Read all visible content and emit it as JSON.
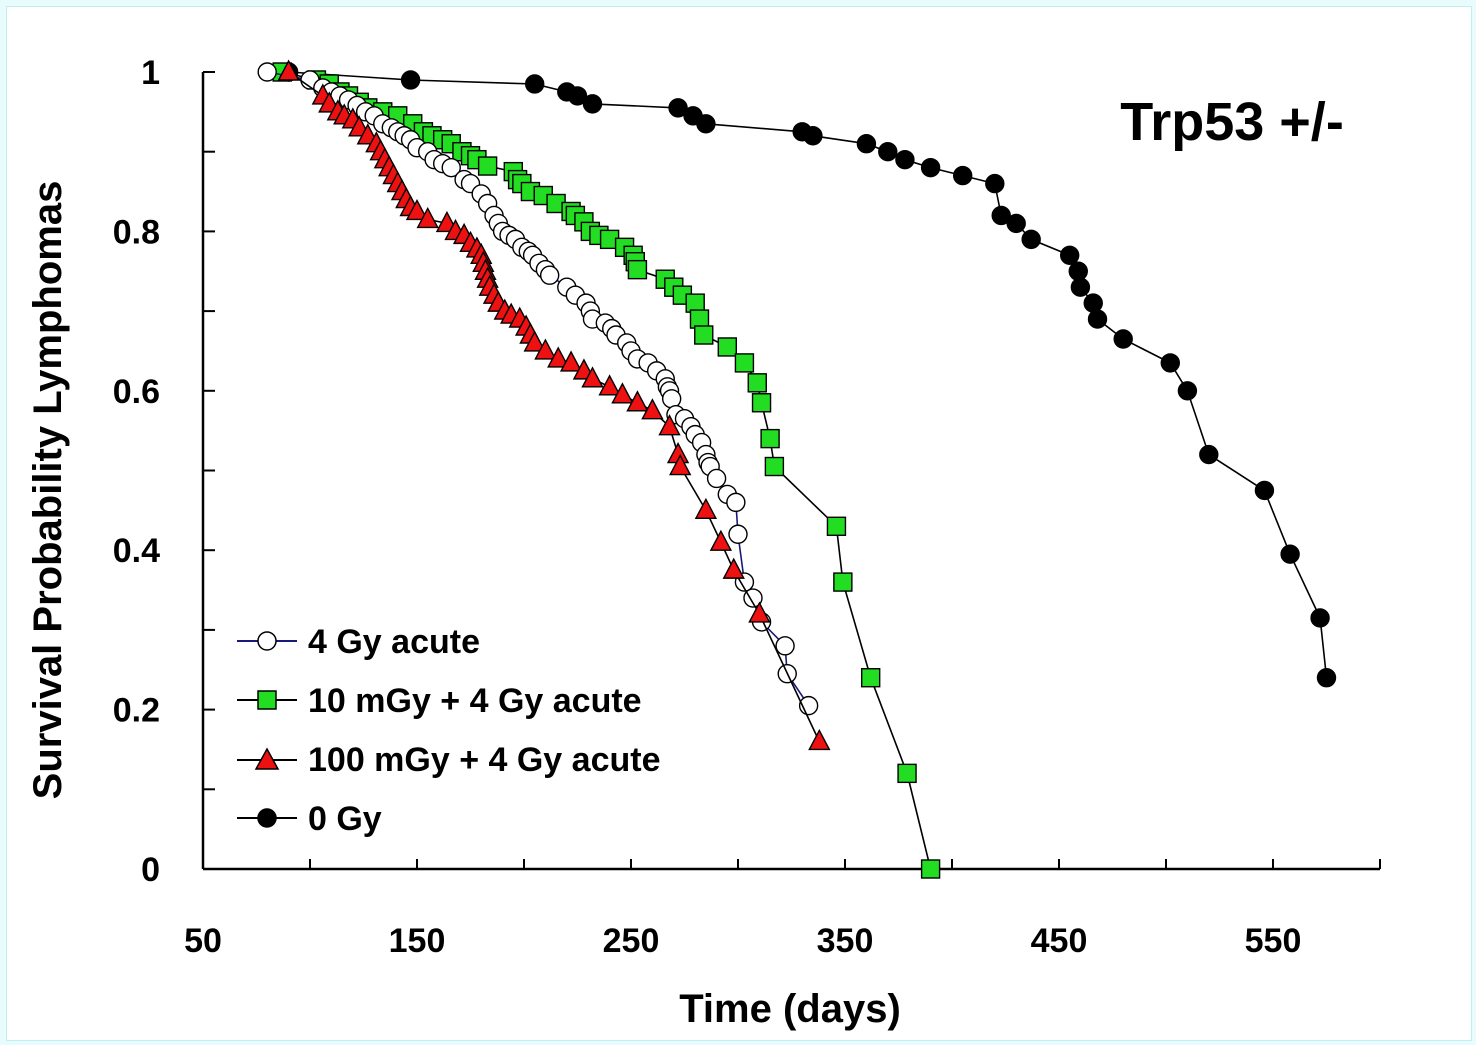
{
  "chart_data": {
    "type": "line",
    "title": "",
    "annotation": "Trp53 +/-",
    "xlabel": "Time (days)",
    "ylabel": "Survival Probability Lymphomas",
    "xlim": [
      50,
      600
    ],
    "ylim": [
      0,
      1
    ],
    "xticks": [
      50,
      150,
      250,
      350,
      450,
      550
    ],
    "xtick_labels": [
      "50",
      "150",
      "250",
      "350",
      "450",
      "550"
    ],
    "yticks": [
      0,
      0.2,
      0.4,
      0.6,
      0.8,
      1
    ],
    "ytick_labels": [
      "0",
      "0.2",
      "0.4",
      "0.6",
      "0.8",
      "1"
    ],
    "grid": false,
    "legend_position": "bottom-left",
    "series": [
      {
        "name": "4 Gy acute",
        "marker": "circle-open",
        "line_color": "#1a1a7a",
        "marker_fill": "#ffffff",
        "points": [
          [
            80,
            1.0
          ],
          [
            100,
            0.99
          ],
          [
            106,
            0.98
          ],
          [
            110,
            0.975
          ],
          [
            114,
            0.97
          ],
          [
            118,
            0.965
          ],
          [
            122,
            0.958
          ],
          [
            126,
            0.95
          ],
          [
            130,
            0.945
          ],
          [
            134,
            0.935
          ],
          [
            138,
            0.93
          ],
          [
            141,
            0.925
          ],
          [
            144,
            0.92
          ],
          [
            147,
            0.915
          ],
          [
            150,
            0.905
          ],
          [
            155,
            0.9
          ],
          [
            158,
            0.89
          ],
          [
            162,
            0.885
          ],
          [
            166,
            0.88
          ],
          [
            172,
            0.865
          ],
          [
            175,
            0.86
          ],
          [
            180,
            0.847
          ],
          [
            183,
            0.835
          ],
          [
            186,
            0.82
          ],
          [
            188,
            0.81
          ],
          [
            190,
            0.8
          ],
          [
            193,
            0.795
          ],
          [
            196,
            0.79
          ],
          [
            199,
            0.78
          ],
          [
            202,
            0.775
          ],
          [
            204,
            0.77
          ],
          [
            207,
            0.76
          ],
          [
            210,
            0.752
          ],
          [
            212,
            0.745
          ],
          [
            220,
            0.73
          ],
          [
            224,
            0.72
          ],
          [
            229,
            0.71
          ],
          [
            231,
            0.7
          ],
          [
            232,
            0.69
          ],
          [
            238,
            0.685
          ],
          [
            241,
            0.678
          ],
          [
            243,
            0.67
          ],
          [
            248,
            0.66
          ],
          [
            250,
            0.65
          ],
          [
            253,
            0.64
          ],
          [
            258,
            0.635
          ],
          [
            262,
            0.625
          ],
          [
            266,
            0.615
          ],
          [
            267,
            0.605
          ],
          [
            268,
            0.6
          ],
          [
            269,
            0.59
          ],
          [
            271,
            0.57
          ],
          [
            275,
            0.565
          ],
          [
            278,
            0.555
          ],
          [
            280,
            0.545
          ],
          [
            283,
            0.535
          ],
          [
            285,
            0.52
          ],
          [
            286,
            0.51
          ],
          [
            287,
            0.505
          ],
          [
            290,
            0.49
          ],
          [
            295,
            0.47
          ],
          [
            299,
            0.46
          ],
          [
            300,
            0.42
          ],
          [
            303,
            0.36
          ],
          [
            307,
            0.34
          ],
          [
            311,
            0.31
          ],
          [
            322,
            0.28
          ],
          [
            323,
            0.245
          ],
          [
            333,
            0.205
          ]
        ]
      },
      {
        "name": "10 mGy + 4 Gy acute",
        "marker": "square",
        "line_color": "#000000",
        "marker_fill": "#22dd22",
        "points": [
          [
            87,
            1.0
          ],
          [
            103,
            0.99
          ],
          [
            109,
            0.985
          ],
          [
            114,
            0.975
          ],
          [
            118,
            0.97
          ],
          [
            123,
            0.962
          ],
          [
            127,
            0.955
          ],
          [
            134,
            0.95
          ],
          [
            141,
            0.945
          ],
          [
            148,
            0.935
          ],
          [
            153,
            0.925
          ],
          [
            157,
            0.92
          ],
          [
            162,
            0.915
          ],
          [
            166,
            0.91
          ],
          [
            171,
            0.9
          ],
          [
            175,
            0.895
          ],
          [
            178,
            0.89
          ],
          [
            183,
            0.882
          ],
          [
            195,
            0.875
          ],
          [
            197,
            0.865
          ],
          [
            199,
            0.86
          ],
          [
            203,
            0.85
          ],
          [
            209,
            0.845
          ],
          [
            215,
            0.835
          ],
          [
            222,
            0.825
          ],
          [
            224,
            0.82
          ],
          [
            228,
            0.812
          ],
          [
            231,
            0.8
          ],
          [
            235,
            0.795
          ],
          [
            240,
            0.79
          ],
          [
            247,
            0.78
          ],
          [
            251,
            0.77
          ],
          [
            252,
            0.762
          ],
          [
            253,
            0.752
          ],
          [
            266,
            0.74
          ],
          [
            270,
            0.73
          ],
          [
            274,
            0.72
          ],
          [
            280,
            0.71
          ],
          [
            282,
            0.69
          ],
          [
            284,
            0.67
          ],
          [
            295,
            0.655
          ],
          [
            303,
            0.635
          ],
          [
            309,
            0.61
          ],
          [
            311,
            0.585
          ],
          [
            315,
            0.54
          ],
          [
            317,
            0.505
          ],
          [
            346,
            0.43
          ],
          [
            349,
            0.36
          ],
          [
            362,
            0.24
          ],
          [
            379,
            0.12
          ],
          [
            390,
            0.0
          ]
        ]
      },
      {
        "name": "100 mGy + 4 Gy acute",
        "marker": "triangle",
        "line_color": "#000000",
        "marker_fill": "#ee1111",
        "points": [
          [
            90,
            1.0
          ],
          [
            106,
            0.97
          ],
          [
            109,
            0.96
          ],
          [
            113,
            0.95
          ],
          [
            116,
            0.945
          ],
          [
            120,
            0.94
          ],
          [
            123,
            0.93
          ],
          [
            127,
            0.92
          ],
          [
            131,
            0.91
          ],
          [
            133,
            0.9
          ],
          [
            135,
            0.89
          ],
          [
            137,
            0.88
          ],
          [
            139,
            0.87
          ],
          [
            141,
            0.86
          ],
          [
            143,
            0.85
          ],
          [
            145,
            0.84
          ],
          [
            147,
            0.83
          ],
          [
            150,
            0.825
          ],
          [
            155,
            0.815
          ],
          [
            164,
            0.81
          ],
          [
            168,
            0.8
          ],
          [
            172,
            0.795
          ],
          [
            175,
            0.785
          ],
          [
            178,
            0.778
          ],
          [
            180,
            0.77
          ],
          [
            181,
            0.76
          ],
          [
            182,
            0.75
          ],
          [
            183,
            0.74
          ],
          [
            184,
            0.73
          ],
          [
            186,
            0.72
          ],
          [
            188,
            0.71
          ],
          [
            191,
            0.7
          ],
          [
            194,
            0.695
          ],
          [
            198,
            0.69
          ],
          [
            201,
            0.68
          ],
          [
            203,
            0.67
          ],
          [
            205,
            0.66
          ],
          [
            210,
            0.65
          ],
          [
            216,
            0.64
          ],
          [
            222,
            0.635
          ],
          [
            228,
            0.625
          ],
          [
            232,
            0.615
          ],
          [
            240,
            0.605
          ],
          [
            246,
            0.595
          ],
          [
            253,
            0.585
          ],
          [
            260,
            0.575
          ],
          [
            268,
            0.555
          ],
          [
            272,
            0.52
          ],
          [
            273,
            0.505
          ],
          [
            285,
            0.45
          ],
          [
            292,
            0.41
          ],
          [
            298,
            0.375
          ],
          [
            310,
            0.32
          ],
          [
            338,
            0.16
          ]
        ]
      },
      {
        "name": "0 Gy",
        "marker": "circle-filled",
        "line_color": "#000000",
        "marker_fill": "#000000",
        "points": [
          [
            90,
            1.0
          ],
          [
            147,
            0.99
          ],
          [
            205,
            0.985
          ],
          [
            220,
            0.975
          ],
          [
            225,
            0.97
          ],
          [
            232,
            0.96
          ],
          [
            272,
            0.955
          ],
          [
            279,
            0.945
          ],
          [
            285,
            0.935
          ],
          [
            330,
            0.925
          ],
          [
            335,
            0.92
          ],
          [
            360,
            0.91
          ],
          [
            370,
            0.9
          ],
          [
            378,
            0.89
          ],
          [
            390,
            0.88
          ],
          [
            405,
            0.87
          ],
          [
            420,
            0.86
          ],
          [
            423,
            0.82
          ],
          [
            430,
            0.81
          ],
          [
            437,
            0.79
          ],
          [
            455,
            0.77
          ],
          [
            459,
            0.75
          ],
          [
            460,
            0.73
          ],
          [
            466,
            0.71
          ],
          [
            468,
            0.69
          ],
          [
            480,
            0.665
          ],
          [
            502,
            0.635
          ],
          [
            510,
            0.6
          ],
          [
            520,
            0.52
          ],
          [
            546,
            0.475
          ],
          [
            558,
            0.395
          ],
          [
            572,
            0.315
          ],
          [
            575,
            0.24
          ]
        ]
      }
    ]
  }
}
